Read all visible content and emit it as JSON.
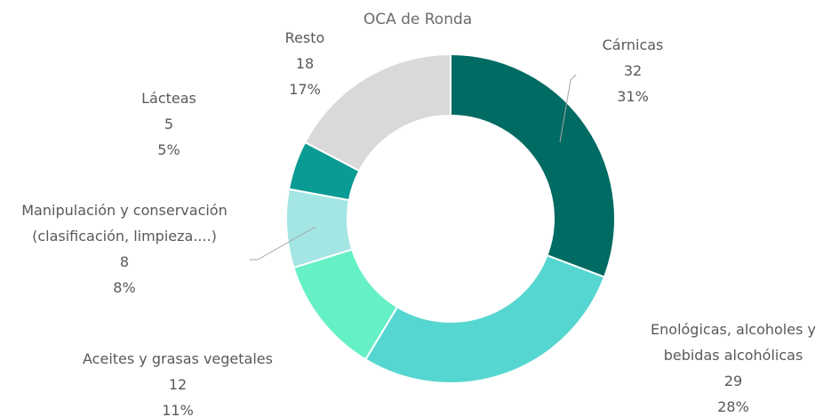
{
  "chart_data": {
    "type": "donut",
    "title": "OCA de Ronda",
    "categories": [
      "Cárnicas",
      "Enológicas, alcoholes y bebidas alcohólicas",
      "Aceites y grasas vegetales",
      "Manipulación y conservación (clasificación, limpieza....)",
      "Lácteas",
      "Resto"
    ],
    "values": [
      32,
      29,
      12,
      8,
      5,
      18
    ],
    "percentages": [
      31,
      28,
      11,
      8,
      5,
      17
    ],
    "percentage_labels": [
      "31%",
      "28%",
      "11%",
      "8%",
      "5%",
      "17%"
    ],
    "colors": [
      "#006b63",
      "#56d6d0",
      "#66f0c6",
      "#a4e6e4",
      "#0a9b94",
      "#d9d9d9"
    ]
  }
}
